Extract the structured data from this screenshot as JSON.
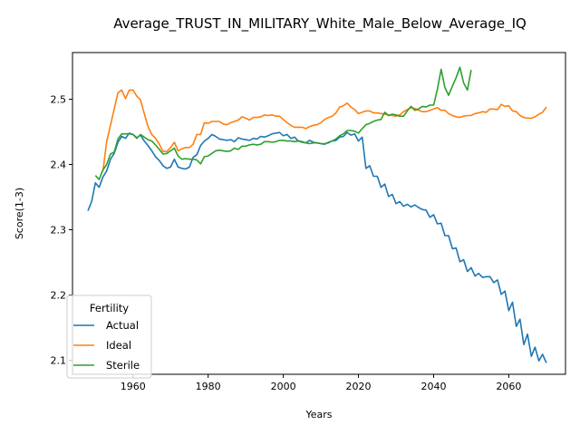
{
  "chart_data": {
    "type": "line",
    "title": "Average_TRUST_IN_MILITARY_White_Male_Below_Average_IQ",
    "xlabel": "Years",
    "ylabel": "Score(1-3)",
    "xlim": [
      1943.9,
      2075.1
    ],
    "ylim": [
      2.0785,
      2.5715
    ],
    "xticks": [
      1960,
      1980,
      2000,
      2020,
      2040,
      2060
    ],
    "xtick_labels": [
      "1960",
      "1980",
      "2000",
      "2020",
      "2040",
      "2060"
    ],
    "yticks": [
      2.1,
      2.2,
      2.3,
      2.4,
      2.5
    ],
    "ytick_labels": [
      "2.1",
      "2.2",
      "2.3",
      "2.4",
      "2.5"
    ],
    "grid": false,
    "legend": {
      "title": "Fertility",
      "placement": "lower-left"
    },
    "series": [
      {
        "name": "Actual",
        "color": "#1f77b4",
        "x": [
          1948,
          1949,
          1950,
          1951,
          1952,
          1953,
          1954,
          1955,
          1956,
          1957,
          1958,
          1959,
          1960,
          1961,
          1962,
          1963,
          1964,
          1965,
          1966,
          1967,
          1968,
          1969,
          1970,
          1971,
          1972,
          1973,
          1974,
          1975,
          1976,
          1977,
          1978,
          1979,
          1980,
          1981,
          1982,
          1983,
          1984,
          1985,
          1986,
          1987,
          1988,
          1989,
          1990,
          1991,
          1992,
          1993,
          1994,
          1995,
          1996,
          1997,
          1998,
          1999,
          2000,
          2001,
          2002,
          2003,
          2004,
          2005,
          2006,
          2007,
          2008,
          2009,
          2010,
          2011,
          2012,
          2013,
          2014,
          2015,
          2016,
          2017,
          2018,
          2019,
          2020,
          2021,
          2022,
          2023,
          2024,
          2025,
          2026,
          2027,
          2028,
          2029,
          2030,
          2031,
          2032,
          2033,
          2034,
          2035,
          2036,
          2037,
          2038,
          2039,
          2040,
          2041,
          2042,
          2043,
          2044,
          2045,
          2046,
          2047,
          2048,
          2049,
          2050,
          2051,
          2052,
          2053,
          2054,
          2055,
          2056,
          2057,
          2058,
          2059,
          2060,
          2061,
          2062,
          2063,
          2064,
          2065,
          2066,
          2067,
          2068,
          2069,
          2070
        ],
        "values": [
          2.329,
          2.343,
          2.372,
          2.365,
          2.381,
          2.39,
          2.408,
          2.417,
          2.434,
          2.443,
          2.44,
          2.448,
          2.446,
          2.441,
          2.445,
          2.436,
          2.429,
          2.421,
          2.412,
          2.406,
          2.398,
          2.394,
          2.396,
          2.408,
          2.396,
          2.394,
          2.393,
          2.396,
          2.411,
          2.415,
          2.429,
          2.436,
          2.44,
          2.446,
          2.443,
          2.439,
          2.438,
          2.437,
          2.438,
          2.435,
          2.441,
          2.439,
          2.438,
          2.437,
          2.44,
          2.439,
          2.443,
          2.442,
          2.444,
          2.447,
          2.448,
          2.449,
          2.444,
          2.446,
          2.44,
          2.442,
          2.436,
          2.435,
          2.433,
          2.437,
          2.434,
          2.433,
          2.432,
          2.431,
          2.434,
          2.436,
          2.437,
          2.442,
          2.443,
          2.449,
          2.445,
          2.447,
          2.436,
          2.442,
          2.394,
          2.398,
          2.382,
          2.382,
          2.365,
          2.37,
          2.351,
          2.354,
          2.34,
          2.343,
          2.336,
          2.339,
          2.335,
          2.338,
          2.334,
          2.331,
          2.33,
          2.319,
          2.323,
          2.309,
          2.31,
          2.291,
          2.291,
          2.271,
          2.272,
          2.251,
          2.254,
          2.236,
          2.242,
          2.229,
          2.233,
          2.227,
          2.228,
          2.228,
          2.219,
          2.223,
          2.201,
          2.206,
          2.176,
          2.189,
          2.152,
          2.163,
          2.124,
          2.14,
          2.106,
          2.12,
          2.099,
          2.109,
          2.096
        ]
      },
      {
        "name": "Ideal",
        "color": "#ff7f0e",
        "x": [
          1952,
          1953,
          1954,
          1955,
          1956,
          1957,
          1958,
          1959,
          1960,
          1961,
          1962,
          1963,
          1964,
          1965,
          1966,
          1967,
          1968,
          1969,
          1970,
          1971,
          1972,
          1973,
          1974,
          1975,
          1976,
          1977,
          1978,
          1979,
          1980,
          1981,
          1982,
          1983,
          1984,
          1985,
          1986,
          1987,
          1988,
          1989,
          1990,
          1991,
          1992,
          1993,
          1994,
          1995,
          1996,
          1997,
          1998,
          1999,
          2000,
          2001,
          2002,
          2003,
          2004,
          2005,
          2006,
          2007,
          2008,
          2009,
          2010,
          2011,
          2012,
          2013,
          2014,
          2015,
          2016,
          2017,
          2018,
          2019,
          2020,
          2021,
          2022,
          2023,
          2024,
          2025,
          2026,
          2027,
          2028,
          2029,
          2030,
          2031,
          2032,
          2033,
          2034,
          2035,
          2036,
          2037,
          2038,
          2039,
          2040,
          2041,
          2042,
          2043,
          2044,
          2045,
          2046,
          2047,
          2048,
          2049,
          2050,
          2051,
          2052,
          2053,
          2054,
          2055,
          2056,
          2057,
          2058,
          2059,
          2060,
          2061,
          2062,
          2063,
          2064,
          2065,
          2066,
          2067,
          2068,
          2069,
          2070
        ],
        "values": [
          2.39,
          2.435,
          2.46,
          2.485,
          2.51,
          2.514,
          2.501,
          2.514,
          2.514,
          2.505,
          2.499,
          2.478,
          2.458,
          2.446,
          2.44,
          2.431,
          2.42,
          2.42,
          2.426,
          2.434,
          2.421,
          2.424,
          2.426,
          2.426,
          2.431,
          2.446,
          2.446,
          2.464,
          2.463,
          2.466,
          2.466,
          2.466,
          2.462,
          2.461,
          2.464,
          2.466,
          2.468,
          2.473,
          2.471,
          2.468,
          2.472,
          2.472,
          2.473,
          2.476,
          2.475,
          2.476,
          2.474,
          2.474,
          2.469,
          2.464,
          2.46,
          2.457,
          2.457,
          2.457,
          2.455,
          2.458,
          2.46,
          2.461,
          2.464,
          2.469,
          2.472,
          2.474,
          2.479,
          2.488,
          2.49,
          2.494,
          2.488,
          2.484,
          2.478,
          2.48,
          2.482,
          2.482,
          2.479,
          2.479,
          2.478,
          2.477,
          2.476,
          2.475,
          2.474,
          2.476,
          2.481,
          2.484,
          2.487,
          2.486,
          2.483,
          2.481,
          2.481,
          2.483,
          2.485,
          2.487,
          2.483,
          2.483,
          2.478,
          2.475,
          2.473,
          2.472,
          2.474,
          2.475,
          2.475,
          2.478,
          2.479,
          2.481,
          2.48,
          2.485,
          2.485,
          2.484,
          2.492,
          2.489,
          2.49,
          2.482,
          2.481,
          2.475,
          2.472,
          2.471,
          2.471,
          2.473,
          2.477,
          2.48,
          2.488
        ]
      },
      {
        "name": "Sterile",
        "color": "#2ca02c",
        "x": [
          1950,
          1951,
          1952,
          1953,
          1954,
          1955,
          1956,
          1957,
          1958,
          1959,
          1960,
          1961,
          1962,
          1963,
          1964,
          1965,
          1966,
          1967,
          1968,
          1969,
          1970,
          1971,
          1972,
          1973,
          1974,
          1975,
          1976,
          1977,
          1978,
          1979,
          1980,
          1981,
          1982,
          1983,
          1984,
          1985,
          1986,
          1987,
          1988,
          1989,
          1990,
          1991,
          1992,
          1993,
          1994,
          1995,
          1996,
          1997,
          1998,
          1999,
          2000,
          2001,
          2002,
          2003,
          2004,
          2005,
          2006,
          2007,
          2008,
          2009,
          2010,
          2011,
          2012,
          2013,
          2014,
          2015,
          2016,
          2017,
          2018,
          2019,
          2020,
          2021,
          2022,
          2023,
          2024,
          2025,
          2026,
          2027,
          2028,
          2029,
          2030,
          2031,
          2032,
          2033,
          2034,
          2035,
          2036,
          2037,
          2038,
          2039,
          2040,
          2041,
          2042,
          2043,
          2044,
          2045,
          2046,
          2047,
          2048,
          2049,
          2050
        ],
        "values": [
          2.383,
          2.377,
          2.392,
          2.4,
          2.416,
          2.419,
          2.439,
          2.447,
          2.447,
          2.447,
          2.446,
          2.44,
          2.446,
          2.442,
          2.438,
          2.436,
          2.43,
          2.423,
          2.416,
          2.417,
          2.421,
          2.425,
          2.413,
          2.408,
          2.409,
          2.408,
          2.408,
          2.407,
          2.401,
          2.412,
          2.413,
          2.417,
          2.421,
          2.422,
          2.421,
          2.42,
          2.421,
          2.425,
          2.423,
          2.428,
          2.428,
          2.43,
          2.431,
          2.43,
          2.431,
          2.435,
          2.435,
          2.434,
          2.435,
          2.437,
          2.437,
          2.436,
          2.436,
          2.435,
          2.436,
          2.434,
          2.433,
          2.432,
          2.433,
          2.433,
          2.432,
          2.432,
          2.433,
          2.436,
          2.439,
          2.444,
          2.447,
          2.452,
          2.452,
          2.451,
          2.448,
          2.455,
          2.461,
          2.463,
          2.466,
          2.468,
          2.469,
          2.48,
          2.475,
          2.477,
          2.476,
          2.474,
          2.474,
          2.482,
          2.489,
          2.483,
          2.485,
          2.489,
          2.488,
          2.491,
          2.491,
          2.515,
          2.546,
          2.518,
          2.506,
          2.52,
          2.533,
          2.549,
          2.525,
          2.514,
          2.545
        ]
      }
    ]
  }
}
